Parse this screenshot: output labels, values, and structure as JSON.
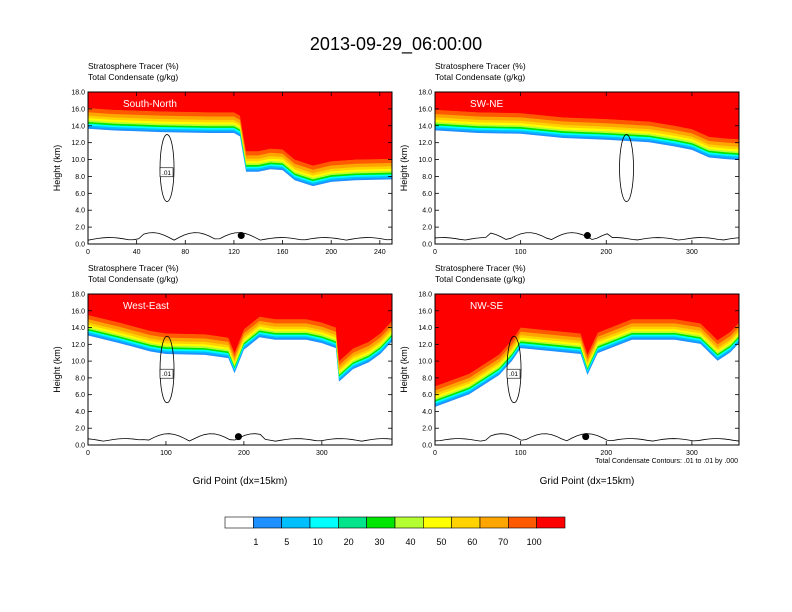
{
  "figure": {
    "title": "2013-09-29_06:00:00",
    "footnote": "Total Condensate Contours: .01 to .01 by .000",
    "colorbar": {
      "levels": [
        "1",
        "5",
        "10",
        "20",
        "30",
        "40",
        "50",
        "60",
        "70",
        "100"
      ],
      "colors": [
        "#ffffff",
        "#1e90ff",
        "#00bfff",
        "#00ffff",
        "#00e58c",
        "#00e600",
        "#b4ff32",
        "#ffff00",
        "#ffd200",
        "#ffa500",
        "#ff5a00",
        "#ff0000"
      ]
    }
  },
  "chart_data": [
    {
      "type": "area",
      "panel_label": "South-North",
      "left_string": "Stratosphere Tracer   (%)",
      "left_string2": "Total Condensate   (g/kg)",
      "xlabel": "",
      "ylabel": "Height (km)",
      "xlim": [
        0,
        250
      ],
      "ylim": [
        0,
        18
      ],
      "xticks": [
        0,
        40,
        80,
        120,
        160,
        200,
        240
      ],
      "yticks": [
        0.0,
        2.0,
        4.0,
        6.0,
        8.0,
        10.0,
        12.0,
        14.0,
        16.0,
        18.0
      ],
      "tracer_boundary_km": [
        [
          0,
          16.1
        ],
        [
          20,
          15.9
        ],
        [
          60,
          15.7
        ],
        [
          100,
          15.6
        ],
        [
          120,
          15.6
        ],
        [
          125,
          15.2
        ],
        [
          127,
          13.5
        ],
        [
          130,
          11.0
        ],
        [
          140,
          11.0
        ],
        [
          150,
          11.3
        ],
        [
          160,
          11.2
        ],
        [
          170,
          10.0
        ],
        [
          185,
          9.3
        ],
        [
          200,
          9.8
        ],
        [
          220,
          10.0
        ],
        [
          250,
          10.1
        ]
      ],
      "contour_label": ".01",
      "marker_x": 126
    },
    {
      "type": "area",
      "panel_label": "SW-NE",
      "left_string": "Stratosphere Tracer   (%)",
      "left_string2": "Total Condensate   (g/kg)",
      "xlabel": "",
      "ylabel": "Height (km)",
      "xlim": [
        0,
        355
      ],
      "ylim": [
        0,
        18
      ],
      "xticks": [
        0,
        100,
        200,
        300
      ],
      "yticks": [
        0.0,
        2.0,
        4.0,
        6.0,
        8.0,
        10.0,
        12.0,
        14.0,
        16.0,
        18.0
      ],
      "tracer_boundary_km": [
        [
          0,
          15.9
        ],
        [
          50,
          15.6
        ],
        [
          100,
          15.5
        ],
        [
          150,
          15.0
        ],
        [
          200,
          14.8
        ],
        [
          250,
          14.5
        ],
        [
          280,
          14.0
        ],
        [
          300,
          13.6
        ],
        [
          320,
          12.7
        ],
        [
          340,
          12.5
        ],
        [
          355,
          12.4
        ]
      ],
      "contour_label": "",
      "marker_x": 178
    },
    {
      "type": "area",
      "panel_label": "West-East",
      "left_string": "Stratosphere Tracer   (%)",
      "left_string2": "Total Condensate   (g/kg)",
      "xlabel": "Grid Point (dx=15km)",
      "ylabel": "Height (km)",
      "xlim": [
        0,
        390
      ],
      "ylim": [
        0,
        18
      ],
      "xticks": [
        0,
        100,
        200,
        300
      ],
      "yticks": [
        0.0,
        2.0,
        4.0,
        6.0,
        8.0,
        10.0,
        12.0,
        14.0,
        16.0,
        18.0
      ],
      "tracer_boundary_km": [
        [
          0,
          15.5
        ],
        [
          40,
          14.6
        ],
        [
          80,
          13.6
        ],
        [
          100,
          13.3
        ],
        [
          150,
          13.2
        ],
        [
          180,
          12.8
        ],
        [
          188,
          11.0
        ],
        [
          200,
          13.8
        ],
        [
          220,
          15.3
        ],
        [
          240,
          15.0
        ],
        [
          280,
          15.0
        ],
        [
          300,
          14.6
        ],
        [
          318,
          14.0
        ],
        [
          322,
          10.0
        ],
        [
          340,
          11.5
        ],
        [
          360,
          12.3
        ],
        [
          375,
          13.3
        ],
        [
          390,
          14.8
        ]
      ],
      "contour_label": ".01",
      "marker_x": 193
    },
    {
      "type": "area",
      "panel_label": "NW-SE",
      "left_string": "Stratosphere Tracer   (%)",
      "left_string2": "Total Condensate   (g/kg)",
      "xlabel": "Grid Point (dx=15km)",
      "ylabel": "Height (km)",
      "xlim": [
        0,
        355
      ],
      "ylim": [
        0,
        18
      ],
      "xticks": [
        0,
        100,
        200,
        300
      ],
      "yticks": [
        0.0,
        2.0,
        4.0,
        6.0,
        8.0,
        10.0,
        12.0,
        14.0,
        16.0,
        18.0
      ],
      "tracer_boundary_km": [
        [
          0,
          7.0
        ],
        [
          40,
          8.5
        ],
        [
          75,
          10.8
        ],
        [
          90,
          12.5
        ],
        [
          100,
          14.0
        ],
        [
          130,
          13.7
        ],
        [
          170,
          13.3
        ],
        [
          178,
          10.8
        ],
        [
          190,
          13.4
        ],
        [
          230,
          15.0
        ],
        [
          280,
          15.0
        ],
        [
          310,
          14.5
        ],
        [
          330,
          12.5
        ],
        [
          345,
          13.5
        ],
        [
          355,
          14.6
        ]
      ],
      "contour_label": ".01",
      "marker_x": 176
    }
  ]
}
